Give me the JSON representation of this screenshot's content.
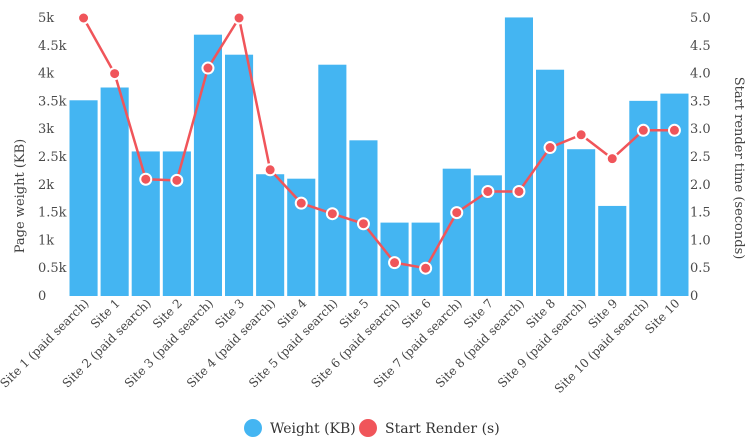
{
  "chart_data": {
    "type": "bar",
    "categories": [
      "Site 1 (paid search)",
      "Site 1",
      "Site 2 (paid search)",
      "Site 2",
      "Site 3 (paid search)",
      "Site 3",
      "Site 4 (paid search)",
      "Site 4",
      "Site 5 (paid search)",
      "Site 5",
      "Site 6 (paid search)",
      "Site 6",
      "Site 7 (paid search)",
      "Site 7",
      "Site 8 (paid search)",
      "Site 8",
      "Site 9 (paid search)",
      "Site 9",
      "Site 10 (paid search)",
      "Site 10"
    ],
    "series": [
      {
        "name": "Weight (KB)",
        "type": "bar",
        "axis": "left",
        "color": "#44b5f2",
        "values": [
          3520,
          3750,
          2600,
          2600,
          4700,
          4340,
          2190,
          2110,
          4160,
          2800,
          1320,
          1320,
          2290,
          2170,
          5010,
          4070,
          2640,
          1620,
          3510,
          3640
        ]
      },
      {
        "name": "Start Render (s)",
        "type": "line",
        "axis": "right",
        "color": "#f0555a",
        "values": [
          5.0,
          4.0,
          2.1,
          2.08,
          4.1,
          5.0,
          2.27,
          1.67,
          1.48,
          1.3,
          0.6,
          0.5,
          1.5,
          1.88,
          1.88,
          2.67,
          2.9,
          2.47,
          2.98,
          2.98
        ]
      }
    ],
    "ylabel": "Page weight (KB)",
    "ylabel_right": "Start render time (seconds)",
    "ylim": [
      0,
      5000
    ],
    "ylim_right": [
      0,
      5.0
    ],
    "yticks": [
      "0",
      "0.5k",
      "1k",
      "1.5k",
      "2k",
      "2.5k",
      "3k",
      "3.5k",
      "4k",
      "4.5k",
      "5k"
    ],
    "yticks_right": [
      "0",
      "0.5",
      "1.0",
      "1.5",
      "2.0",
      "2.5",
      "3.0",
      "3.5",
      "4.0",
      "4.5",
      "5.0"
    ],
    "grid": false,
    "legend_position": "bottom"
  }
}
